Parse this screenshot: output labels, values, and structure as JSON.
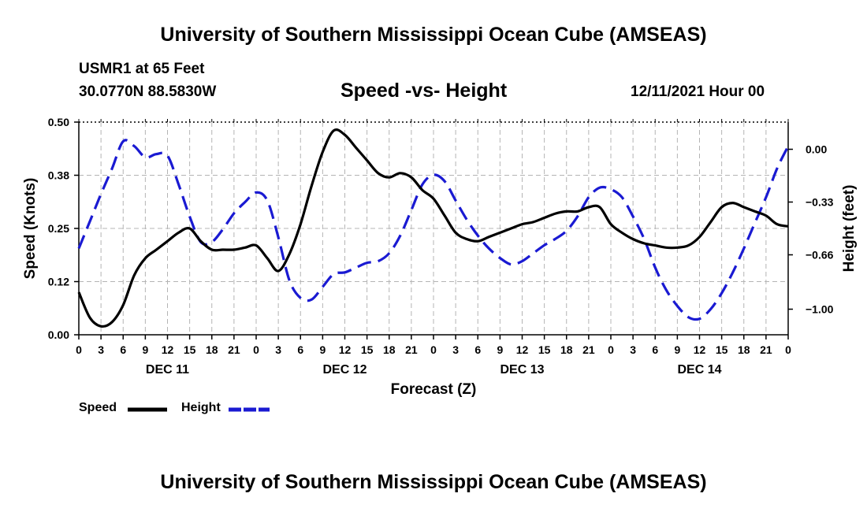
{
  "page_title": "University of Southern Mississippi Ocean Cube (AMSEAS)",
  "footer_title": "University of Southern Mississippi Ocean Cube (AMSEAS)",
  "station": "USMR1 at 65 Feet",
  "coordinates": "30.0770N  88.5830W",
  "timestamp": "12/11/2021 Hour 00",
  "chart_data": {
    "type": "line",
    "title": "Speed -vs- Height",
    "xlabel": "Forecast (Z)",
    "ylabel": "Speed (Knots)",
    "y2label": "Height (feet)",
    "x_hours_range": [
      0,
      96
    ],
    "ylim": [
      0,
      0.5
    ],
    "y2lim": [
      -1.16,
      0.17
    ],
    "yticks": [
      "0.00",
      "0.12",
      "0.25",
      "0.38",
      "0.50"
    ],
    "y2ticks": [
      "0.00",
      "−0.33",
      "−0.66",
      "−1.00"
    ],
    "y2tick_values": [
      0,
      -0.33,
      -0.66,
      -1.0
    ],
    "xtick_labels": [
      "0",
      "3",
      "6",
      "9",
      "12",
      "15",
      "18",
      "21",
      "0",
      "3",
      "6",
      "9",
      "12",
      "15",
      "18",
      "21",
      "0",
      "3",
      "6",
      "9",
      "12",
      "15",
      "18",
      "21",
      "0",
      "3",
      "6",
      "9",
      "12",
      "15",
      "18",
      "21",
      "0"
    ],
    "day_labels": [
      {
        "label": "DEC 11",
        "hour": 12
      },
      {
        "label": "DEC 12",
        "hour": 36
      },
      {
        "label": "DEC 13",
        "hour": 60
      },
      {
        "label": "DEC 14",
        "hour": 84
      }
    ],
    "series": [
      {
        "name": "Speed",
        "axis": "left",
        "color": "#000000",
        "dash": "solid",
        "x": [
          0,
          1.5,
          3,
          4.5,
          6,
          7.5,
          9,
          10.5,
          12,
          13.5,
          15,
          16.5,
          18,
          19.5,
          21,
          22.5,
          24,
          25.5,
          27,
          28.5,
          30,
          31.5,
          33,
          34.5,
          36,
          37.5,
          39,
          40.5,
          42,
          43.5,
          45,
          46.5,
          48,
          49.5,
          51,
          52.5,
          54,
          55.5,
          57,
          58.5,
          60,
          61.5,
          63,
          64.5,
          66,
          67.5,
          69,
          70.5,
          72,
          73.5,
          75,
          76.5,
          78,
          79.5,
          81,
          82.5,
          84,
          85.5,
          87,
          88.5,
          90,
          91.5,
          93,
          94.5,
          96
        ],
        "y": [
          0.1,
          0.04,
          0.02,
          0.03,
          0.07,
          0.14,
          0.18,
          0.2,
          0.22,
          0.24,
          0.25,
          0.22,
          0.2,
          0.2,
          0.2,
          0.205,
          0.21,
          0.18,
          0.15,
          0.19,
          0.26,
          0.35,
          0.43,
          0.48,
          0.47,
          0.44,
          0.41,
          0.38,
          0.37,
          0.38,
          0.37,
          0.34,
          0.32,
          0.28,
          0.24,
          0.225,
          0.22,
          0.23,
          0.24,
          0.25,
          0.26,
          0.265,
          0.275,
          0.285,
          0.29,
          0.29,
          0.3,
          0.3,
          0.26,
          0.24,
          0.225,
          0.215,
          0.21,
          0.205,
          0.205,
          0.21,
          0.23,
          0.265,
          0.3,
          0.31,
          0.3,
          0.29,
          0.28,
          0.26,
          0.255
        ]
      },
      {
        "name": "Height",
        "axis": "right",
        "color": "#1a1ad2",
        "dash": "dashed",
        "x": [
          0,
          1.5,
          3,
          4.5,
          6,
          7.5,
          9,
          10.5,
          12,
          13.5,
          15,
          16.5,
          18,
          19.5,
          21,
          22.5,
          24,
          25.5,
          27,
          28.5,
          30,
          31.5,
          33,
          34.5,
          36,
          37.5,
          39,
          40.5,
          42,
          43.5,
          45,
          46.5,
          48,
          49.5,
          51,
          52.5,
          54,
          55.5,
          57,
          58.5,
          60,
          61.5,
          63,
          64.5,
          66,
          67.5,
          69,
          70.5,
          72,
          73.5,
          75,
          76.5,
          78,
          79.5,
          81,
          82.5,
          84,
          85.5,
          87,
          88.5,
          90,
          91.5,
          93,
          94.5,
          96
        ],
        "y": [
          -0.62,
          -0.45,
          -0.28,
          -0.12,
          0.05,
          0.02,
          -0.05,
          -0.03,
          -0.04,
          -0.22,
          -0.42,
          -0.58,
          -0.58,
          -0.5,
          -0.4,
          -0.33,
          -0.27,
          -0.32,
          -0.55,
          -0.82,
          -0.93,
          -0.94,
          -0.86,
          -0.78,
          -0.77,
          -0.74,
          -0.71,
          -0.7,
          -0.65,
          -0.54,
          -0.38,
          -0.22,
          -0.16,
          -0.2,
          -0.32,
          -0.44,
          -0.54,
          -0.62,
          -0.68,
          -0.72,
          -0.7,
          -0.65,
          -0.6,
          -0.56,
          -0.51,
          -0.42,
          -0.3,
          -0.24,
          -0.25,
          -0.3,
          -0.42,
          -0.56,
          -0.74,
          -0.88,
          -0.98,
          -1.05,
          -1.06,
          -1.0,
          -0.9,
          -0.77,
          -0.62,
          -0.46,
          -0.3,
          -0.12,
          0.02
        ]
      }
    ],
    "legend": [
      {
        "label": "Speed",
        "color": "#000000",
        "dash": "solid"
      },
      {
        "label": "Height",
        "color": "#1a1ad2",
        "dash": "dashed"
      }
    ]
  }
}
